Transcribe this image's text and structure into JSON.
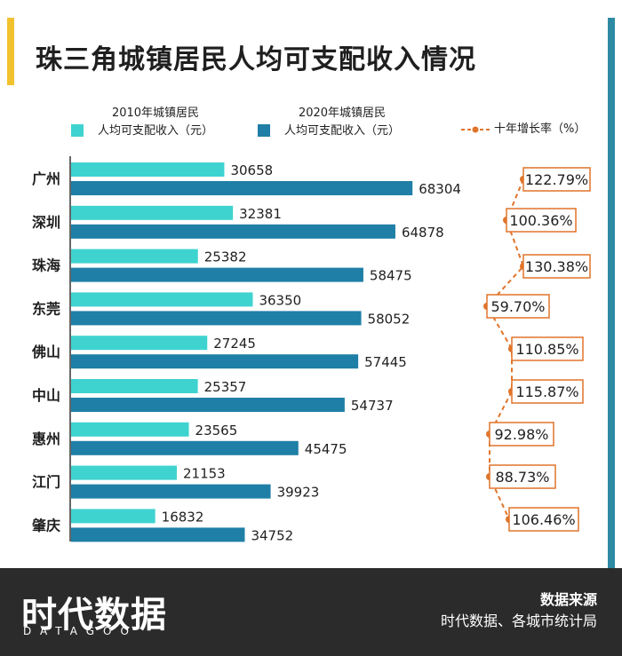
{
  "title": "珠三角城镇居民人均可支配收入情况",
  "legend": {
    "series_2010_line1": "2010年城镇居民",
    "series_2010_line2": "人均可支配收入（元）",
    "series_2020_line1": "2020年城镇居民",
    "series_2020_line2": "人均可支配收入（元）",
    "growth_label": "十年增长率（%）"
  },
  "colors": {
    "bar_2010": "#3fd3d0",
    "bar_2020": "#1f7fa6",
    "growth_line": "#e0742a",
    "accent": "#f2c12e",
    "footer": "#2b2b2b"
  },
  "chart_data": {
    "type": "bar",
    "orientation": "horizontal",
    "categories": [
      "广州",
      "深圳",
      "珠海",
      "东莞",
      "佛山",
      "中山",
      "惠州",
      "江门",
      "肇庆"
    ],
    "series": [
      {
        "name": "2010年城镇居民人均可支配收入（元）",
        "values": [
          30658,
          32381,
          25382,
          36350,
          27245,
          25357,
          23565,
          21153,
          16832
        ]
      },
      {
        "name": "2020年城镇居民人均可支配收入（元）",
        "values": [
          68304,
          64878,
          58475,
          58052,
          57445,
          54737,
          45475,
          39923,
          34752
        ]
      },
      {
        "name": "十年增长率（%）",
        "values": [
          122.79,
          100.36,
          130.38,
          59.7,
          110.85,
          115.87,
          92.98,
          88.73,
          106.46
        ]
      }
    ],
    "growth_labels": [
      "122.79%",
      "100.36%",
      "130.38%",
      "59.70%",
      "110.85%",
      "115.87%",
      "92.98%",
      "88.73%",
      "106.46%"
    ],
    "xlim": [
      0,
      80000
    ]
  },
  "footer": {
    "brand": "时代数据",
    "brand_sub": "DATAGOO",
    "source_title": "数据来源",
    "source_text": "时代数据、各城市统计局"
  }
}
